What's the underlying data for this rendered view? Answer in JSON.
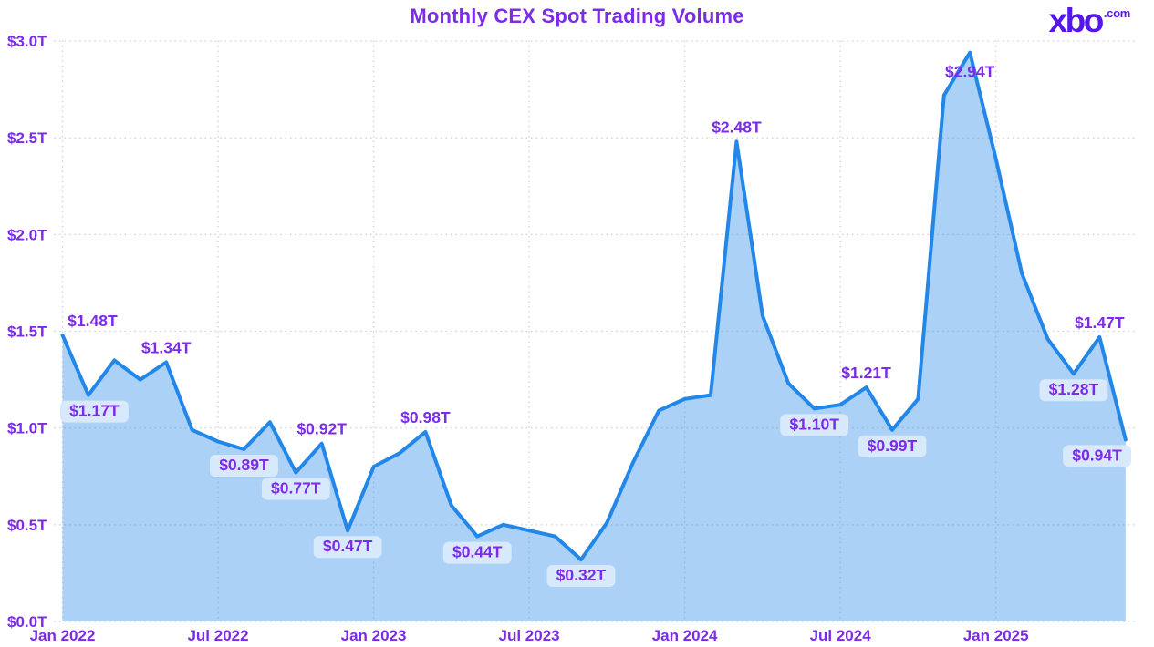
{
  "header": {
    "title": "Monthly CEX Spot Trading Volume",
    "logo": {
      "name": "xbo",
      "tld": ".com"
    }
  },
  "chart_data": {
    "type": "area",
    "title": "Monthly CEX Spot Trading Volume",
    "unit": "USD trillions per month",
    "x": [
      "Jan 2022",
      "Feb 2022",
      "Mar 2022",
      "Apr 2022",
      "May 2022",
      "Jun 2022",
      "Jul 2022",
      "Aug 2022",
      "Sep 2022",
      "Oct 2022",
      "Nov 2022",
      "Dec 2022",
      "Jan 2023",
      "Feb 2023",
      "Mar 2023",
      "Apr 2023",
      "May 2023",
      "Jun 2023",
      "Jul 2023",
      "Aug 2023",
      "Sep 2023",
      "Oct 2023",
      "Nov 2023",
      "Dec 2023",
      "Jan 2024",
      "Feb 2024",
      "Mar 2024",
      "Apr 2024",
      "May 2024",
      "Jun 2024",
      "Jul 2024",
      "Aug 2024",
      "Sep 2024",
      "Oct 2024",
      "Nov 2024",
      "Dec 2024",
      "Jan 2025",
      "Feb 2025",
      "Mar 2025",
      "Apr 2025",
      "May 2025",
      "Jun 2025"
    ],
    "values": [
      1.48,
      1.17,
      1.35,
      1.25,
      1.34,
      0.99,
      0.93,
      0.89,
      1.03,
      0.77,
      0.92,
      0.47,
      0.8,
      0.87,
      0.98,
      0.6,
      0.44,
      0.5,
      0.47,
      0.44,
      0.32,
      0.51,
      0.82,
      1.09,
      1.15,
      1.17,
      2.48,
      1.58,
      1.23,
      1.1,
      1.12,
      1.21,
      0.99,
      1.15,
      2.72,
      2.94,
      2.39,
      1.8,
      1.46,
      1.28,
      1.47,
      0.94
    ],
    "ylim": [
      0,
      3.0
    ],
    "grid": "dotted",
    "legend": "none",
    "y_ticks": [
      {
        "value": 0.0,
        "label": "$0.0T"
      },
      {
        "value": 0.5,
        "label": "$0.5T"
      },
      {
        "value": 1.0,
        "label": "$1.0T"
      },
      {
        "value": 1.5,
        "label": "$1.5T"
      },
      {
        "value": 2.0,
        "label": "$2.0T"
      },
      {
        "value": 2.5,
        "label": "$2.5T"
      },
      {
        "value": 3.0,
        "label": "$3.0T"
      }
    ],
    "x_ticks": [
      {
        "index": 0,
        "label": "Jan 2022"
      },
      {
        "index": 6,
        "label": "Jul 2022"
      },
      {
        "index": 12,
        "label": "Jan 2023"
      },
      {
        "index": 18,
        "label": "Jul 2023"
      },
      {
        "index": 24,
        "label": "Jan 2024"
      },
      {
        "index": 30,
        "label": "Jul 2024"
      },
      {
        "index": 36,
        "label": "Jan 2025"
      }
    ],
    "annotations": [
      {
        "index": 0,
        "label": "$1.48T",
        "style": "plain-above"
      },
      {
        "index": 1,
        "label": "$1.17T",
        "style": "pill"
      },
      {
        "index": 4,
        "label": "$1.34T",
        "style": "plain-above"
      },
      {
        "index": 7,
        "label": "$0.89T",
        "style": "pill"
      },
      {
        "index": 9,
        "label": "$0.77T",
        "style": "pill"
      },
      {
        "index": 10,
        "label": "$0.92T",
        "style": "plain-above"
      },
      {
        "index": 11,
        "label": "$0.47T",
        "style": "pill"
      },
      {
        "index": 14,
        "label": "$0.98T",
        "style": "plain-above"
      },
      {
        "index": 16,
        "label": "$0.44T",
        "style": "pill"
      },
      {
        "index": 20,
        "label": "$0.32T",
        "style": "pill"
      },
      {
        "index": 26,
        "label": "$2.48T",
        "style": "plain-above"
      },
      {
        "index": 29,
        "label": "$1.10T",
        "style": "pill"
      },
      {
        "index": 31,
        "label": "$1.21T",
        "style": "plain-above"
      },
      {
        "index": 32,
        "label": "$0.99T",
        "style": "pill"
      },
      {
        "index": 35,
        "label": "$2.94T",
        "style": "plain-below"
      },
      {
        "index": 39,
        "label": "$1.28T",
        "style": "pill"
      },
      {
        "index": 40,
        "label": "$1.47T",
        "style": "plain-above"
      },
      {
        "index": 41,
        "label": "$0.94T",
        "style": "pill"
      }
    ],
    "colors": {
      "line": "#2287E8",
      "fill": "#A9D2F5",
      "fill_rgba": "rgba(34,135,232,0.38)",
      "pill_bg": "#D9E9FC",
      "label_text": "#7C2BE9",
      "axis_text": "#7C2BE9",
      "title_text": "#7C2BE9",
      "logo": "#5517E8",
      "grid": "#DADADA",
      "background": "#FFFFFF"
    }
  }
}
